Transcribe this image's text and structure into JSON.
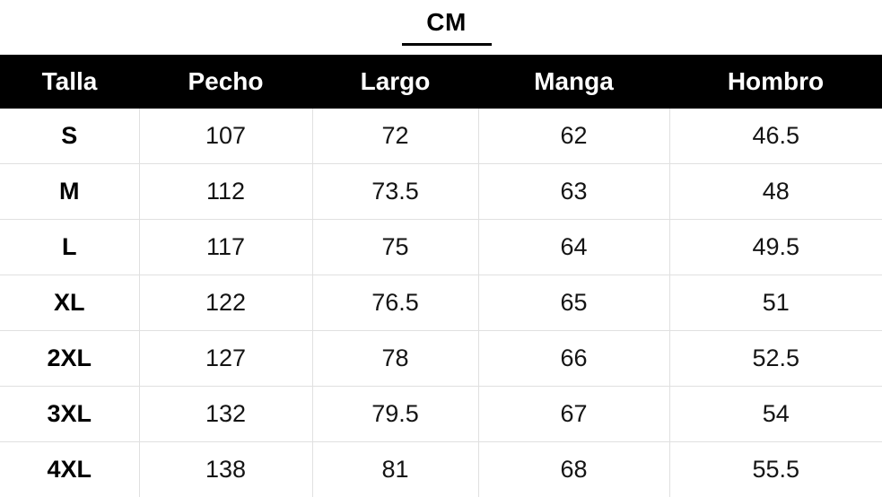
{
  "title": {
    "text": "CM"
  },
  "colors": {
    "header_bg": "#000000",
    "header_text": "#ffffff",
    "grid_line": "#e0e0e0",
    "cell_text": "#141414",
    "title_underline": "#000000"
  },
  "table": {
    "columns": [
      {
        "label": "Talla"
      },
      {
        "label": "Pecho"
      },
      {
        "label": "Largo"
      },
      {
        "label": "Manga"
      },
      {
        "label": "Hombro"
      }
    ],
    "rows": [
      {
        "talla": "S",
        "pecho": "107",
        "largo": "72",
        "manga": "62",
        "hombro": "46.5"
      },
      {
        "talla": "M",
        "pecho": "112",
        "largo": "73.5",
        "manga": "63",
        "hombro": "48"
      },
      {
        "talla": "L",
        "pecho": "117",
        "largo": "75",
        "manga": "64",
        "hombro": "49.5"
      },
      {
        "talla": "XL",
        "pecho": "122",
        "largo": "76.5",
        "manga": "65",
        "hombro": "51"
      },
      {
        "talla": "2XL",
        "pecho": "127",
        "largo": "78",
        "manga": "66",
        "hombro": "52.5"
      },
      {
        "talla": "3XL",
        "pecho": "132",
        "largo": "79.5",
        "manga": "67",
        "hombro": "54"
      },
      {
        "talla": "4XL",
        "pecho": "138",
        "largo": "81",
        "manga": "68",
        "hombro": "55.5"
      }
    ]
  },
  "chart_data": {
    "type": "table",
    "title": "CM",
    "columns": [
      "Talla",
      "Pecho",
      "Largo",
      "Manga",
      "Hombro"
    ],
    "rows": [
      [
        "S",
        107,
        72,
        62,
        46.5
      ],
      [
        "M",
        112,
        73.5,
        63,
        48
      ],
      [
        "L",
        117,
        75,
        64,
        49.5
      ],
      [
        "XL",
        122,
        76.5,
        65,
        51
      ],
      [
        "2XL",
        127,
        78,
        66,
        52.5
      ],
      [
        "3XL",
        132,
        79.5,
        67,
        54
      ],
      [
        "4XL",
        138,
        81,
        68,
        55.5
      ]
    ],
    "units": "cm"
  }
}
